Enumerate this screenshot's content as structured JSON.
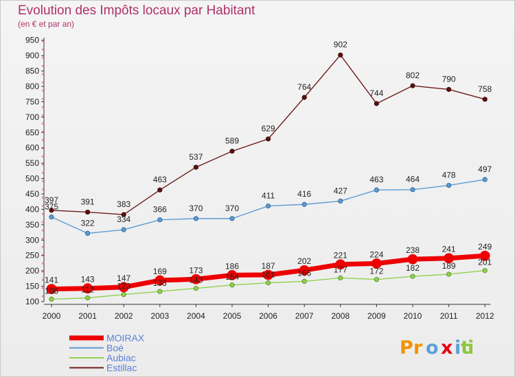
{
  "header": {
    "title": "Evolution des Impôts locaux par Habitant",
    "subtitle": "(en € et par an)"
  },
  "logo": {
    "letters": [
      "P",
      "r",
      "o",
      "x",
      "i",
      "t",
      "i"
    ]
  },
  "colors": {
    "moirax": "#ee0000",
    "boe": "#5b9bd5",
    "aubiac": "#92d050",
    "estillac": "#6e1a1a",
    "title": "#b0306a"
  },
  "chart_data": {
    "type": "line",
    "x": [
      "2000",
      "2001",
      "2002",
      "2003",
      "2004",
      "2005",
      "2006",
      "2007",
      "2008",
      "2009",
      "2010",
      "2011",
      "2012"
    ],
    "y_ticks": [
      100,
      150,
      200,
      250,
      300,
      350,
      400,
      450,
      500,
      550,
      600,
      650,
      700,
      750,
      800,
      850,
      900,
      950
    ],
    "ylim": [
      100,
      950
    ],
    "grid": false,
    "legend_position": "bottom-left",
    "series": [
      {
        "name": "MOIRAX",
        "values": [
          141,
          143,
          147,
          169,
          173,
          186,
          187,
          202,
          221,
          224,
          238,
          241,
          249
        ]
      },
      {
        "name": "Boé",
        "values": [
          375,
          322,
          334,
          366,
          370,
          370,
          411,
          416,
          427,
          463,
          464,
          478,
          497
        ]
      },
      {
        "name": "Aubiac",
        "values": [
          108,
          112,
          123,
          133,
          143,
          154,
          161,
          166,
          177,
          172,
          182,
          189,
          201
        ]
      },
      {
        "name": "Estillac",
        "values": [
          397,
          391,
          383,
          463,
          537,
          589,
          629,
          764,
          902,
          744,
          802,
          790,
          758
        ]
      }
    ]
  }
}
